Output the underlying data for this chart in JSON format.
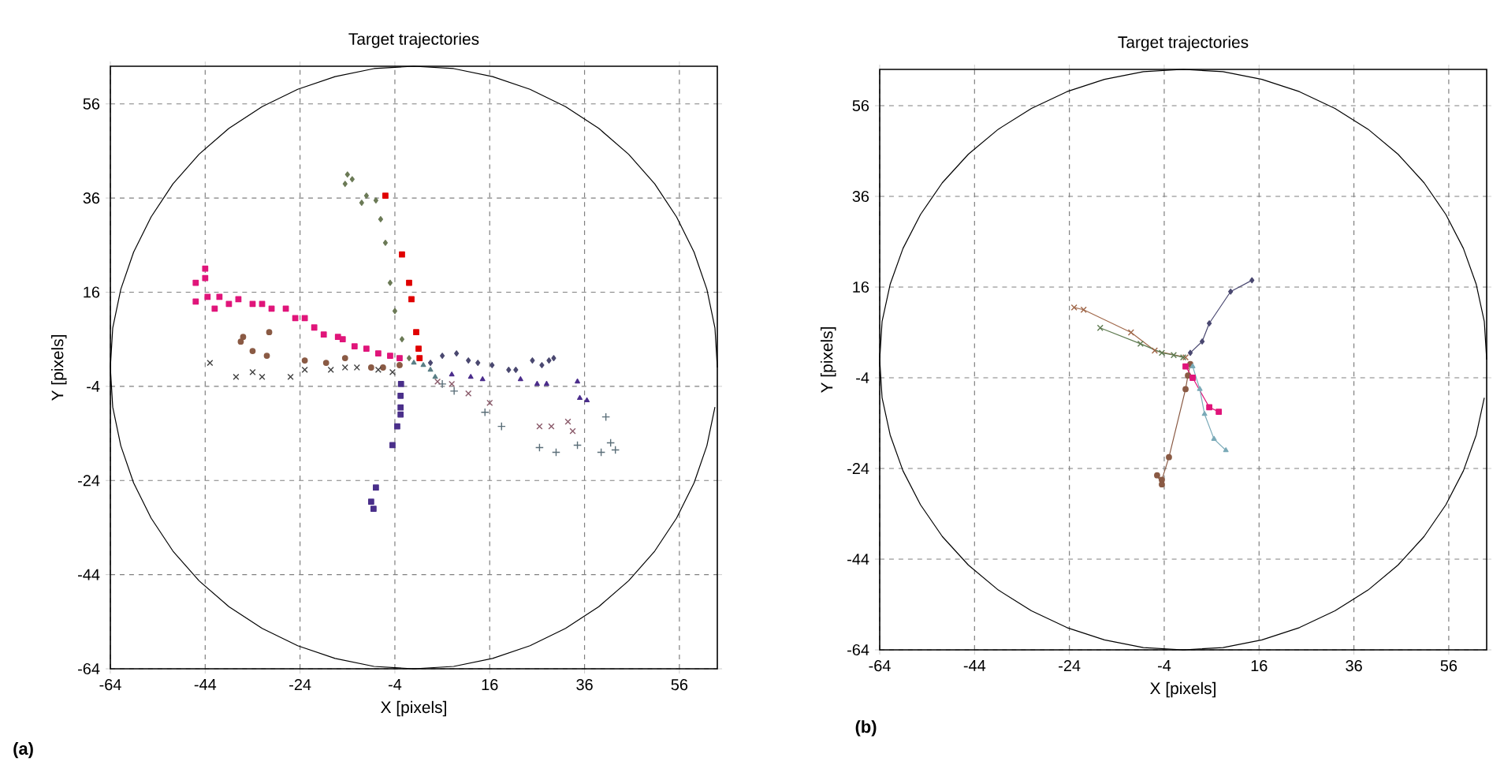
{
  "chart_data": [
    {
      "type": "scatter",
      "title": "Target trajectories",
      "xlabel": "X [pixels]",
      "ylabel": "Y [pixels]",
      "annotations": [
        "(a)"
      ],
      "xlim": [
        -64,
        64
      ],
      "ylim": [
        -64,
        64
      ],
      "xticks": [
        -64,
        -44,
        -24,
        -4,
        16,
        36,
        56
      ],
      "yticks": [
        -64,
        -44,
        -24,
        -4,
        16,
        36,
        56
      ],
      "grid": true,
      "series": [
        {
          "type": "line",
          "color": "#000000",
          "marker": "none",
          "x": [
            64,
            63.5,
            61.8,
            59.1,
            55.4,
            50.8,
            45.3,
            39,
            32,
            24.5,
            16.6,
            8.4,
            0,
            -8.4,
            -16.6,
            -24.5,
            -32,
            -39,
            -45.3,
            -50.8,
            -55.4,
            -59.1,
            -61.8,
            -63.5,
            -64,
            -63.5,
            -61.8,
            -59.1,
            -55.4,
            -50.8,
            -45.3,
            -39,
            -32,
            -24.5,
            -16.6,
            -8.4,
            0,
            8.4,
            16.6,
            24.5,
            32,
            39,
            45.3,
            50.8,
            55.4,
            59.1,
            61.8,
            63.5
          ],
          "values": [
            0,
            8.4,
            16.6,
            24.5,
            32,
            39,
            45.3,
            50.8,
            55.4,
            59.1,
            61.8,
            63.5,
            64,
            63.5,
            61.8,
            59.1,
            55.4,
            50.8,
            45.3,
            39,
            32,
            24.5,
            16.6,
            8.4,
            0,
            -8.4,
            -16.6,
            -24.5,
            -32,
            -39,
            -45.3,
            -50.8,
            -55.4,
            -59.1,
            -61.8,
            -63.5,
            -64,
            -63.5,
            -61.8,
            -59.1,
            -55.4,
            -50.8,
            -45.3,
            -39,
            -32,
            -24.5,
            -16.6,
            -8.4
          ]
        },
        {
          "color": "#e0157a",
          "marker": "square",
          "x": [
            -44,
            -44,
            -46,
            -46,
            -43.5,
            -42,
            -41,
            -39,
            -37,
            -34,
            -32,
            -30,
            -27,
            -25,
            -23,
            -21,
            -19,
            -16,
            -15,
            -12.5,
            -10,
            -7.5,
            -5,
            -3
          ],
          "values": [
            21,
            19,
            18,
            14,
            15,
            12.5,
            15,
            13.5,
            14.5,
            13.5,
            13.5,
            12.5,
            12.5,
            10.5,
            10.5,
            8.5,
            7,
            6.5,
            6,
            4.5,
            4,
            3,
            2.5,
            2
          ]
        },
        {
          "color": "#6b7a56",
          "marker": "diamond",
          "x": [
            -14,
            -14.5,
            -13,
            -10,
            -11,
            -8,
            -7,
            -6,
            -5,
            -4,
            -2.5,
            -1
          ],
          "values": [
            41,
            39,
            40,
            36.5,
            35,
            35.5,
            31.5,
            26.5,
            18,
            12,
            6,
            2
          ]
        },
        {
          "color": "#e00000",
          "marker": "square",
          "x": [
            -6,
            -2.5,
            -1,
            -0.5,
            0.5,
            1,
            1.2
          ],
          "values": [
            36.5,
            24,
            18,
            14.5,
            7.5,
            4,
            2
          ]
        },
        {
          "color": "#8a5a44",
          "marker": "circle",
          "x": [
            -36,
            -36.5,
            -30.5,
            -34,
            -31,
            -23,
            -18.5,
            -14.5,
            -9,
            -6.5,
            -3
          ],
          "values": [
            6.5,
            5.5,
            7.5,
            3.5,
            2.5,
            1.5,
            1,
            2,
            0,
            0,
            0.5
          ]
        },
        {
          "color": "#404040",
          "marker": "cross",
          "x": [
            -43,
            -37.5,
            -34,
            -32,
            -26,
            -23,
            -17.5,
            -14.5,
            -12,
            -7.5,
            -4.5
          ],
          "values": [
            1,
            -2,
            -1,
            -2,
            -2,
            -0.5,
            -0.5,
            0,
            0,
            -0.5,
            -1
          ]
        },
        {
          "color": "#4a2f8a",
          "marker": "square",
          "x": [
            -2.7,
            -2.8,
            -2.8,
            -2.8,
            -3.5,
            -4.5,
            -8,
            -9,
            -8.5
          ],
          "values": [
            -3.5,
            -6,
            -8.5,
            -10,
            -12.5,
            -16.5,
            -25.5,
            -28.5,
            -30
          ]
        },
        {
          "color": "#4a4870",
          "marker": "diamond",
          "x": [
            3.5,
            6,
            9,
            11.5,
            13.5,
            16.5,
            20,
            21.5,
            25,
            27,
            28.5,
            29.5
          ],
          "values": [
            1,
            2.5,
            3,
            1.5,
            1,
            0.5,
            -0.5,
            -0.5,
            1.5,
            0.5,
            1.5,
            2
          ]
        },
        {
          "color": "#4b2d8c",
          "marker": "triangle",
          "x": [
            8,
            12,
            14.5,
            22.5,
            26,
            28,
            34.5,
            35,
            36.5
          ],
          "values": [
            -1.5,
            -2,
            -2.5,
            -2.5,
            -3.5,
            -3.5,
            -3,
            -6.5,
            -7
          ]
        },
        {
          "color": "#5a6e78",
          "marker": "plus",
          "x": [
            6,
            8.5,
            15,
            18.5,
            26.5,
            30,
            34.5,
            40.5,
            41.5,
            39.5,
            42.5
          ],
          "values": [
            -3.5,
            -5,
            -9.5,
            -12.5,
            -17,
            -18,
            -16.5,
            -10.5,
            -16,
            -18,
            -17.5
          ]
        },
        {
          "color": "#8a5a6a",
          "marker": "cross",
          "x": [
            5,
            8,
            11.5,
            16,
            26.5,
            29,
            32.5,
            33.5
          ],
          "values": [
            -3,
            -3.5,
            -5.5,
            -7.5,
            -12.5,
            -12.5,
            -11.5,
            -13.5
          ]
        },
        {
          "color": "#5b7f86",
          "marker": "triangle",
          "x": [
            0,
            2,
            3.5,
            4.5
          ],
          "values": [
            1,
            0.5,
            -0.5,
            -2
          ]
        }
      ]
    },
    {
      "type": "line",
      "title": "Target trajectories",
      "xlabel": "X [pixels]",
      "ylabel": "Y [pixels]",
      "annotations": [
        "(b)"
      ],
      "xlim": [
        -64,
        64
      ],
      "ylim": [
        -64,
        64
      ],
      "xticks": [
        -64,
        -44,
        -24,
        -4,
        16,
        36,
        56
      ],
      "yticks": [
        -64,
        -44,
        -24,
        -4,
        16,
        36,
        56
      ],
      "grid": true,
      "line_style": "solid",
      "series": [
        {
          "color": "#000000",
          "marker": "none",
          "x": [
            64,
            63.5,
            61.8,
            59.1,
            55.4,
            50.8,
            45.3,
            39,
            32,
            24.5,
            16.6,
            8.4,
            0,
            -8.4,
            -16.6,
            -24.5,
            -32,
            -39,
            -45.3,
            -50.8,
            -55.4,
            -59.1,
            -61.8,
            -63.5,
            -64,
            -63.5,
            -61.8,
            -59.1,
            -55.4,
            -50.8,
            -45.3,
            -39,
            -32,
            -24.5,
            -16.6,
            -8.4,
            0,
            8.4,
            16.6,
            24.5,
            32,
            39,
            45.3,
            50.8,
            55.4,
            59.1,
            61.8,
            63.5
          ],
          "values": [
            0,
            8.4,
            16.6,
            24.5,
            32,
            39,
            45.3,
            50.8,
            55.4,
            59.1,
            61.8,
            63.5,
            64,
            63.5,
            61.8,
            59.1,
            55.4,
            50.8,
            45.3,
            39,
            32,
            24.5,
            16.6,
            8.4,
            0,
            -8.4,
            -16.6,
            -24.5,
            -32,
            -39,
            -45.3,
            -50.8,
            -55.4,
            -59.1,
            -61.8,
            -63.5,
            -64,
            -63.5,
            -61.8,
            -59.1,
            -55.4,
            -50.8,
            -45.3,
            -39,
            -32,
            -24.5,
            -16.6,
            -8.4
          ]
        },
        {
          "color": "#4a4870",
          "marker": "diamond",
          "x": [
            1.5,
            4,
            5.5,
            10,
            14.5
          ],
          "values": [
            1.5,
            4,
            8,
            15,
            17.5
          ]
        },
        {
          "color": "#8a5a44",
          "marker": "circle",
          "x": [
            1.5,
            1,
            0.5,
            -3,
            -4.5,
            -5.5,
            -4.5
          ],
          "values": [
            -1,
            -3.5,
            -6.5,
            -21.5,
            -26.5,
            -25.5,
            -27.5
          ]
        },
        {
          "color": "#e0157a",
          "marker": "square",
          "x": [
            0.5,
            2,
            5.5,
            7.5
          ],
          "values": [
            -1.5,
            -4,
            -10.5,
            -11.5
          ]
        },
        {
          "color": "#7aaab8",
          "marker": "triangle",
          "x": [
            2,
            3.5,
            4.5,
            6.5,
            9
          ],
          "values": [
            -1.5,
            -6.5,
            -12,
            -17.5,
            -20
          ]
        },
        {
          "color": "#a0684a",
          "marker": "cross",
          "x": [
            -23,
            -21,
            -11,
            -6,
            0.5
          ],
          "values": [
            11.5,
            11,
            6,
            2,
            0.5
          ]
        },
        {
          "color": "#5e7a50",
          "marker": "cross",
          "x": [
            -17.5,
            -9,
            -4.5,
            -2,
            0
          ],
          "values": [
            7,
            3.5,
            1.5,
            1,
            0.5
          ]
        }
      ]
    }
  ]
}
